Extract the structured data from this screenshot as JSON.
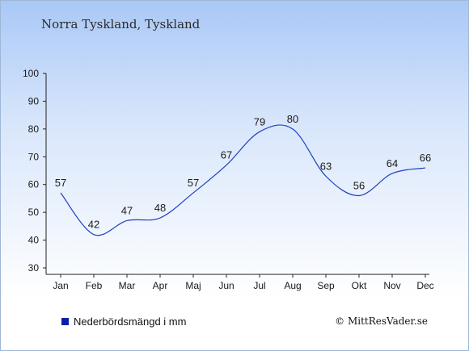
{
  "chart_title": "Norra Tyskland, Tyskland",
  "legend_label": "Nederbördsmängd i mm",
  "copyright": "© MittResVader.se",
  "colors": {
    "line": "#1f3fbf",
    "legend": "#0a1fa8",
    "text": "#1a1a1a"
  },
  "chart_data": {
    "type": "line",
    "title": "Norra Tyskland, Tyskland",
    "categories": [
      "Jan",
      "Feb",
      "Mar",
      "Apr",
      "Maj",
      "Jun",
      "Jul",
      "Aug",
      "Sep",
      "Okt",
      "Nov",
      "Dec"
    ],
    "series": [
      {
        "name": "Nederbördsmängd i mm",
        "values": [
          57,
          42,
          47,
          48,
          57,
          67,
          79,
          80,
          63,
          56,
          64,
          66
        ]
      }
    ],
    "ylim": [
      30,
      100
    ],
    "yticks": [
      30,
      40,
      50,
      60,
      70,
      80,
      90,
      100
    ],
    "xlabel": "",
    "ylabel": "",
    "grid": false,
    "legend_position": "bottom-left"
  }
}
